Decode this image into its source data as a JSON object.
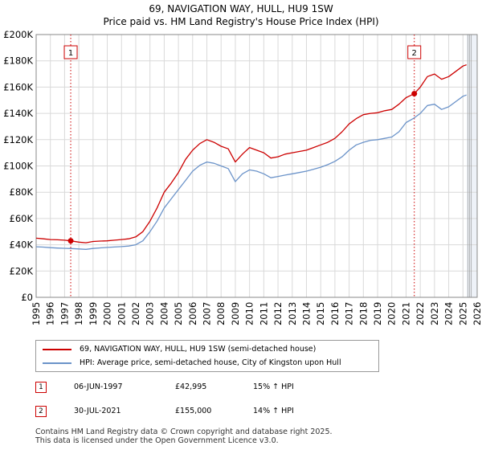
{
  "header": {
    "title": "69, NAVIGATION WAY, HULL, HU9 1SW",
    "subtitle": "Price paid vs. HM Land Registry's House Price Index (HPI)"
  },
  "colors": {
    "property": "#cc0000",
    "hpi": "#6b93c9",
    "marker_line": "#cc0000",
    "grid": "#d9d9d9",
    "shade": "#eef2f8"
  },
  "chart_data": {
    "type": "line",
    "title": "69, NAVIGATION WAY, HULL, HU9 1SW",
    "subtitle": "Price paid vs. HM Land Registry's House Price Index (HPI)",
    "xlabel": "",
    "ylabel": "",
    "xlim": [
      1995,
      2026
    ],
    "ylim": [
      0,
      200000
    ],
    "x_ticks": [
      "1995",
      "1996",
      "1997",
      "1998",
      "1999",
      "2000",
      "2001",
      "2002",
      "2003",
      "2004",
      "2005",
      "2006",
      "2007",
      "2008",
      "2009",
      "2010",
      "2011",
      "2012",
      "2013",
      "2014",
      "2015",
      "2016",
      "2017",
      "2018",
      "2019",
      "2020",
      "2021",
      "2022",
      "2023",
      "2024",
      "2025",
      "2026"
    ],
    "y_ticks": [
      {
        "value": 0,
        "label": "£0"
      },
      {
        "value": 20000,
        "label": "£20K"
      },
      {
        "value": 40000,
        "label": "£40K"
      },
      {
        "value": 60000,
        "label": "£60K"
      },
      {
        "value": 80000,
        "label": "£80K"
      },
      {
        "value": 100000,
        "label": "£100K"
      },
      {
        "value": 120000,
        "label": "£120K"
      },
      {
        "value": 140000,
        "label": "£140K"
      },
      {
        "value": 160000,
        "label": "£160K"
      },
      {
        "value": 180000,
        "label": "£180K"
      },
      {
        "value": 200000,
        "label": "£200K"
      }
    ],
    "grid": true,
    "future_shade_from": 2025.25,
    "series": [
      {
        "name": "69, NAVIGATION WAY, HULL, HU9 1SW (semi-detached house)",
        "color": "#cc0000",
        "x": [
          1995.0,
          1995.5,
          1996.0,
          1996.5,
          1997.0,
          1997.43,
          1998.0,
          1998.5,
          1999.0,
          1999.5,
          2000.0,
          2000.5,
          2001.0,
          2001.5,
          2002.0,
          2002.5,
          2003.0,
          2003.5,
          2004.0,
          2004.5,
          2005.0,
          2005.5,
          2006.0,
          2006.5,
          2007.0,
          2007.5,
          2008.0,
          2008.5,
          2009.0,
          2009.5,
          2010.0,
          2010.5,
          2011.0,
          2011.5,
          2012.0,
          2012.5,
          2013.0,
          2013.5,
          2014.0,
          2014.5,
          2015.0,
          2015.5,
          2016.0,
          2016.5,
          2017.0,
          2017.5,
          2018.0,
          2018.5,
          2019.0,
          2019.5,
          2020.0,
          2020.5,
          2021.0,
          2021.58,
          2022.0,
          2022.5,
          2023.0,
          2023.5,
          2024.0,
          2024.5,
          2025.0,
          2025.25
        ],
        "y": [
          45000,
          44500,
          44000,
          43800,
          43500,
          42995,
          42000,
          41500,
          42500,
          42800,
          43000,
          43500,
          44000,
          44500,
          46000,
          50000,
          58000,
          68000,
          80000,
          87000,
          95000,
          105000,
          112000,
          117000,
          120000,
          118000,
          115000,
          113000,
          103000,
          109000,
          114000,
          112000,
          110000,
          106000,
          107000,
          109000,
          110000,
          111000,
          112000,
          114000,
          116000,
          118000,
          121000,
          126000,
          132000,
          136000,
          139000,
          140000,
          140500,
          142000,
          143000,
          147000,
          152000,
          155000,
          160000,
          168000,
          170000,
          166000,
          168000,
          172000,
          176000,
          177000
        ]
      },
      {
        "name": "HPI: Average price, semi-detached house, City of Kingston upon Hull",
        "color": "#6b93c9",
        "x": [
          1995.0,
          1995.5,
          1996.0,
          1996.5,
          1997.0,
          1997.5,
          1998.0,
          1998.5,
          1999.0,
          1999.5,
          2000.0,
          2000.5,
          2001.0,
          2001.5,
          2002.0,
          2002.5,
          2003.0,
          2003.5,
          2004.0,
          2004.5,
          2005.0,
          2005.5,
          2006.0,
          2006.5,
          2007.0,
          2007.5,
          2008.0,
          2008.5,
          2009.0,
          2009.5,
          2010.0,
          2010.5,
          2011.0,
          2011.5,
          2012.0,
          2012.5,
          2013.0,
          2013.5,
          2014.0,
          2014.5,
          2015.0,
          2015.5,
          2016.0,
          2016.5,
          2017.0,
          2017.5,
          2018.0,
          2018.5,
          2019.0,
          2019.5,
          2020.0,
          2020.5,
          2021.0,
          2021.5,
          2022.0,
          2022.5,
          2023.0,
          2023.5,
          2024.0,
          2024.5,
          2025.0,
          2025.25
        ],
        "y": [
          38500,
          38200,
          37800,
          37500,
          37300,
          37100,
          36800,
          36500,
          37200,
          37600,
          38000,
          38300,
          38600,
          39000,
          40000,
          43000,
          50000,
          58000,
          68000,
          75000,
          82000,
          89000,
          96000,
          100500,
          103000,
          102000,
          100000,
          98000,
          88000,
          94000,
          97000,
          96000,
          94000,
          91000,
          92000,
          93000,
          94000,
          95000,
          96000,
          97500,
          99000,
          101000,
          103500,
          107000,
          112000,
          116000,
          118000,
          119500,
          120000,
          121000,
          122000,
          126000,
          133000,
          136000,
          140000,
          146000,
          147000,
          143000,
          145000,
          149000,
          153000,
          154000
        ]
      }
    ],
    "sales": [
      {
        "id": "1",
        "x": 1997.43,
        "y": 42995
      },
      {
        "id": "2",
        "x": 2021.58,
        "y": 155000
      }
    ]
  },
  "legend": {
    "property_label": "69, NAVIGATION WAY, HULL, HU9 1SW (semi-detached house)",
    "hpi_label": "HPI: Average price, semi-detached house, City of Kingston upon Hull"
  },
  "sales_table": [
    {
      "id": "1",
      "date": "06-JUN-1997",
      "price": "£42,995",
      "hpi": "15% ↑ HPI"
    },
    {
      "id": "2",
      "date": "30-JUL-2021",
      "price": "£155,000",
      "hpi": "14% ↑ HPI"
    }
  ],
  "footer": {
    "line1": "Contains HM Land Registry data © Crown copyright and database right 2025.",
    "line2": "This data is licensed under the Open Government Licence v3.0."
  }
}
